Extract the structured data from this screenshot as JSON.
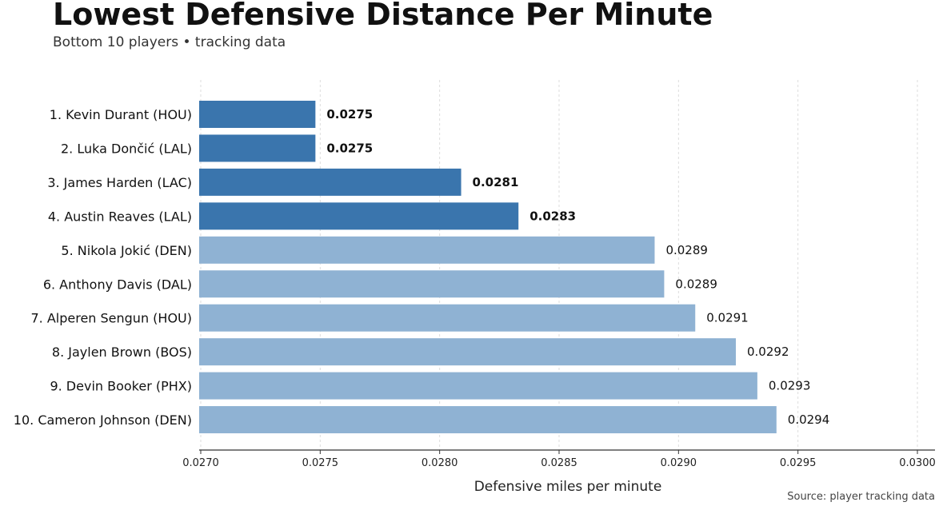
{
  "chart_data": {
    "type": "bar",
    "orientation": "horizontal",
    "title": "Lowest Defensive Distance Per Minute",
    "subtitle": "Bottom 10 players • tracking data",
    "xlabel": "Defensive miles per minute",
    "ylabel": "",
    "source": "Source: player tracking data",
    "xlim": [
      0.027,
      0.03
    ],
    "xticks": [
      "0.0270",
      "0.0275",
      "0.0280",
      "0.0285",
      "0.0290",
      "0.0295",
      "0.0300"
    ],
    "grid": "vertical dashed",
    "categories": [
      "1. Kevin Durant (HOU)",
      "2. Luka Dončić (LAL)",
      "3. James Harden (LAC)",
      "4. Austin Reaves (LAL)",
      "5. Nikola Jokić (DEN)",
      "6. Anthony Davis (DAL)",
      "7. Alperen Sengun (HOU)",
      "8. Jaylen Brown (BOS)",
      "9. Devin Booker (PHX)",
      "10. Cameron Johnson (DEN)"
    ],
    "values": [
      0.02748,
      0.02748,
      0.02809,
      0.02833,
      0.0289,
      0.02894,
      0.02907,
      0.02924,
      0.02933,
      0.02941
    ],
    "value_labels": [
      "0.0275",
      "0.0275",
      "0.0281",
      "0.0283",
      "0.0289",
      "0.0289",
      "0.0291",
      "0.0292",
      "0.0293",
      "0.0294"
    ],
    "highlighted": [
      true,
      true,
      true,
      true,
      false,
      false,
      false,
      false,
      false,
      false
    ],
    "colors": {
      "highlight": "#3a75ad",
      "normal": "#8fb2d3",
      "grid": "#dddddd",
      "axis": "#333333"
    }
  }
}
